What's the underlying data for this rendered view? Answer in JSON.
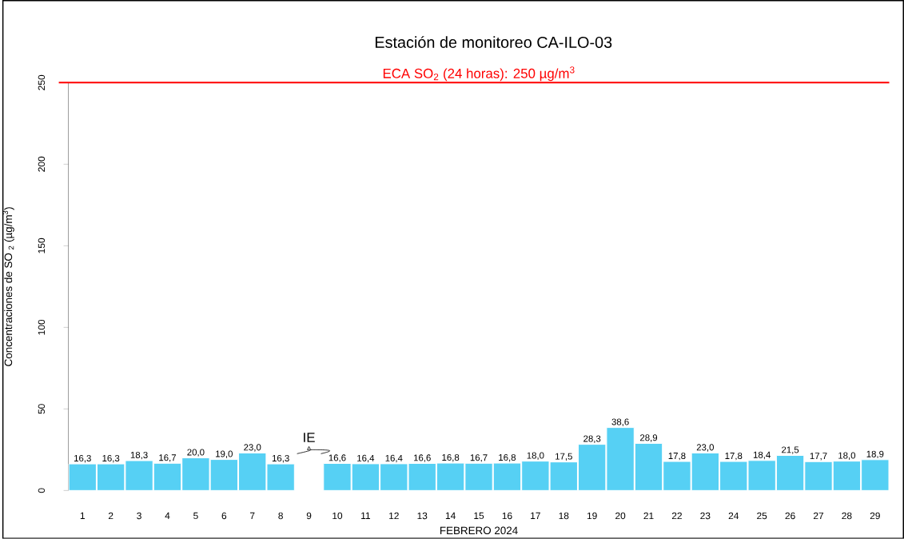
{
  "chart_data": {
    "type": "bar",
    "title": "Estación de monitoreo  CA-ILO-03",
    "xlabel": "FEBRERO 2024",
    "ylabel": "Concentraciones de SO $_{2}$ (µg/m$^{3}$)",
    "categories": [
      "1",
      "2",
      "3",
      "4",
      "5",
      "6",
      "7",
      "8",
      "9",
      "10",
      "11",
      "12",
      "13",
      "14",
      "15",
      "16",
      "17",
      "18",
      "19",
      "20",
      "21",
      "22",
      "23",
      "24",
      "25",
      "26",
      "27",
      "28",
      "29"
    ],
    "values": [
      16.3,
      16.3,
      18.3,
      16.7,
      20.0,
      19.0,
      23.0,
      16.3,
      null,
      16.6,
      16.4,
      16.4,
      16.6,
      16.8,
      16.7,
      16.8,
      18.0,
      17.5,
      28.3,
      38.6,
      28.9,
      17.8,
      23.0,
      17.8,
      18.4,
      21.5,
      17.7,
      18.0,
      18.9
    ],
    "value_labels": [
      "16,3",
      "16,3",
      "18,3",
      "16,7",
      "20,0",
      "19,0",
      "23,0",
      "16,3",
      null,
      "16,6",
      "16,4",
      "16,4",
      "16,6",
      "16,8",
      "16,7",
      "16,8",
      "18,0",
      "17,5",
      "28,3",
      "38,6",
      "28,9",
      "17,8",
      "23,0",
      "17,8",
      "18,4",
      "21,5",
      "17,7",
      "18,0",
      "18,9"
    ],
    "color": "#56d0f4",
    "ylim": [
      0,
      250
    ],
    "yticks": [
      0,
      50,
      100,
      150,
      200,
      250
    ],
    "ref_lines": [
      {
        "axis": "y",
        "value": 250,
        "label": "ECA SO$_{2}$ (24 horas): 250 µg/m$^{3}$",
        "color": "#ff0000"
      }
    ],
    "annotations": [
      "IE"
    ]
  }
}
